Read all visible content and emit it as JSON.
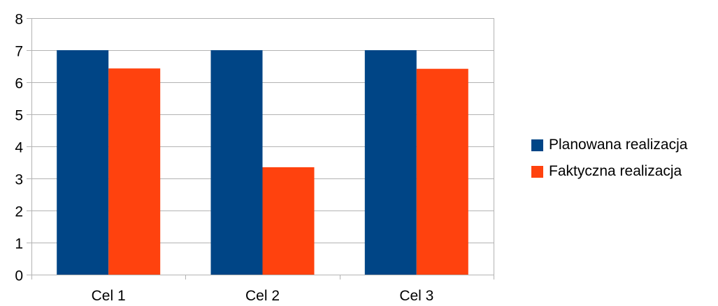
{
  "chart_data": {
    "type": "bar",
    "categories": [
      "Cel 1",
      "Cel 2",
      "Cel 3"
    ],
    "series": [
      {
        "name": "Planowana realizacja",
        "color": "#004586",
        "values": [
          7,
          7,
          7
        ]
      },
      {
        "name": "Faktyczna realizacja",
        "color": "#ff420e",
        "values": [
          6.43,
          3.35,
          6.42
        ]
      }
    ],
    "title": "",
    "xlabel": "",
    "ylabel": "",
    "ylim": [
      0,
      8
    ],
    "yticks": [
      0,
      1,
      2,
      3,
      4,
      5,
      6,
      7,
      8
    ],
    "grid": true,
    "legend_position": "right"
  }
}
